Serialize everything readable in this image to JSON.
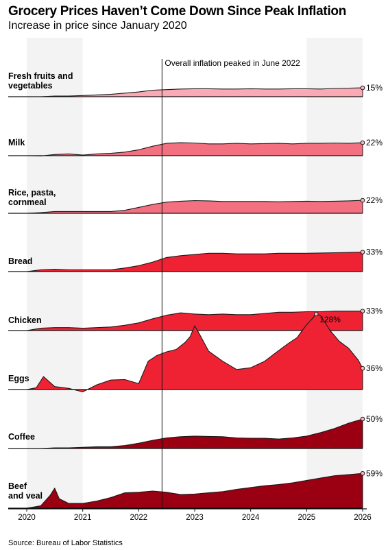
{
  "title": "Grocery Prices Haven’t Come Down Since Peak Inflation",
  "subtitle": "Increase in price since January 2020",
  "source": "Source: Bureau of Labor Statistics",
  "annotation": "Overall inflation peaked in June 2022",
  "colors": {
    "light_pink": "#f9aab5",
    "pink": "#f37081",
    "red": "#ee2233",
    "dark_red": "#9a0012",
    "shade": "#f3f3f3"
  },
  "chart_data": {
    "type": "area",
    "subtitle": "Increase in price since January 2020",
    "x_ticks": [
      "2020",
      "2021",
      "2022",
      "2023",
      "2024",
      "2025",
      "2026"
    ],
    "x_range": [
      "2020-01",
      "2026-01"
    ],
    "shaded_periods": [
      [
        "2020-01",
        "2021-01"
      ],
      [
        "2025-01",
        "2026-01"
      ]
    ],
    "reference_line": {
      "date": "2022-06",
      "label": "Overall inflation peaked in June 2022"
    },
    "unit": "% increase since January 2020",
    "series": [
      {
        "name": "Fresh fruits and vegetables",
        "label_lines": [
          "Fresh fruits and",
          "vegetables"
        ],
        "color_key": "light_pink",
        "end_label": "15%",
        "points": [
          [
            2020.0,
            0
          ],
          [
            2020.25,
            0
          ],
          [
            2020.5,
            1
          ],
          [
            2020.75,
            1
          ],
          [
            2021.0,
            2
          ],
          [
            2021.25,
            3
          ],
          [
            2021.5,
            4
          ],
          [
            2021.75,
            6
          ],
          [
            2022.0,
            8
          ],
          [
            2022.25,
            11
          ],
          [
            2022.5,
            12
          ],
          [
            2022.75,
            13
          ],
          [
            2023.0,
            13.5
          ],
          [
            2023.25,
            13.5
          ],
          [
            2023.5,
            13
          ],
          [
            2023.75,
            13
          ],
          [
            2024.0,
            13.5
          ],
          [
            2024.25,
            13
          ],
          [
            2024.5,
            13
          ],
          [
            2024.75,
            13.5
          ],
          [
            2025.0,
            13.5
          ],
          [
            2025.25,
            13
          ],
          [
            2025.5,
            14
          ],
          [
            2025.75,
            14.5
          ],
          [
            2026.0,
            15
          ]
        ]
      },
      {
        "name": "Milk",
        "label_lines": [
          "Milk"
        ],
        "color_key": "pink",
        "end_label": "22%",
        "points": [
          [
            2020.0,
            0
          ],
          [
            2020.25,
            -0.5
          ],
          [
            2020.5,
            2
          ],
          [
            2020.75,
            3
          ],
          [
            2021.0,
            1
          ],
          [
            2021.25,
            3
          ],
          [
            2021.5,
            4
          ],
          [
            2021.75,
            6
          ],
          [
            2022.0,
            10
          ],
          [
            2022.25,
            16
          ],
          [
            2022.5,
            21
          ],
          [
            2022.75,
            22
          ],
          [
            2023.0,
            21.5
          ],
          [
            2023.25,
            20
          ],
          [
            2023.5,
            20
          ],
          [
            2023.75,
            21
          ],
          [
            2024.0,
            20
          ],
          [
            2024.25,
            20.5
          ],
          [
            2024.5,
            21
          ],
          [
            2024.75,
            20
          ],
          [
            2025.0,
            21
          ],
          [
            2025.25,
            21
          ],
          [
            2025.5,
            21.5
          ],
          [
            2025.75,
            21
          ],
          [
            2026.0,
            22
          ]
        ]
      },
      {
        "name": "Rice, pasta, cornmeal",
        "label_lines": [
          "Rice, pasta,",
          "cornmeal"
        ],
        "color_key": "pink",
        "end_label": "22%",
        "points": [
          [
            2020.0,
            0
          ],
          [
            2020.25,
            1
          ],
          [
            2020.5,
            3
          ],
          [
            2020.75,
            3
          ],
          [
            2021.0,
            3
          ],
          [
            2021.25,
            3
          ],
          [
            2021.5,
            3
          ],
          [
            2021.75,
            5
          ],
          [
            2022.0,
            10
          ],
          [
            2022.25,
            15
          ],
          [
            2022.5,
            19
          ],
          [
            2022.75,
            20.5
          ],
          [
            2023.0,
            21.5
          ],
          [
            2023.25,
            21
          ],
          [
            2023.5,
            20
          ],
          [
            2023.75,
            20
          ],
          [
            2024.0,
            20
          ],
          [
            2024.25,
            20
          ],
          [
            2024.5,
            19.5
          ],
          [
            2024.75,
            20
          ],
          [
            2025.0,
            20.5
          ],
          [
            2025.25,
            20
          ],
          [
            2025.5,
            20.5
          ],
          [
            2025.75,
            21
          ],
          [
            2026.0,
            22
          ]
        ]
      },
      {
        "name": "Bread",
        "label_lines": [
          "Bread"
        ],
        "color_key": "red",
        "end_label": "33%",
        "points": [
          [
            2020.0,
            0
          ],
          [
            2020.25,
            3
          ],
          [
            2020.5,
            4
          ],
          [
            2020.75,
            3
          ],
          [
            2021.0,
            3
          ],
          [
            2021.25,
            3
          ],
          [
            2021.5,
            3
          ],
          [
            2021.75,
            6
          ],
          [
            2022.0,
            10
          ],
          [
            2022.25,
            16
          ],
          [
            2022.5,
            24
          ],
          [
            2022.75,
            27
          ],
          [
            2023.0,
            29
          ],
          [
            2023.25,
            31
          ],
          [
            2023.5,
            31
          ],
          [
            2023.75,
            30
          ],
          [
            2024.0,
            30
          ],
          [
            2024.25,
            30
          ],
          [
            2024.5,
            31
          ],
          [
            2024.75,
            31
          ],
          [
            2025.0,
            31
          ],
          [
            2025.25,
            31.5
          ],
          [
            2025.5,
            32
          ],
          [
            2025.75,
            32.5
          ],
          [
            2026.0,
            33
          ]
        ]
      },
      {
        "name": "Chicken",
        "label_lines": [
          "Chicken"
        ],
        "color_key": "red",
        "end_label": "33%",
        "points": [
          [
            2020.0,
            0
          ],
          [
            2020.25,
            4
          ],
          [
            2020.5,
            5
          ],
          [
            2020.75,
            5
          ],
          [
            2021.0,
            4
          ],
          [
            2021.25,
            5
          ],
          [
            2021.5,
            6
          ],
          [
            2021.75,
            9
          ],
          [
            2022.0,
            13
          ],
          [
            2022.25,
            20
          ],
          [
            2022.5,
            26
          ],
          [
            2022.75,
            30
          ],
          [
            2023.0,
            28
          ],
          [
            2023.25,
            27
          ],
          [
            2023.5,
            28
          ],
          [
            2023.75,
            27
          ],
          [
            2024.0,
            27
          ],
          [
            2024.25,
            29
          ],
          [
            2024.5,
            31
          ],
          [
            2024.75,
            31
          ],
          [
            2025.0,
            32
          ],
          [
            2025.25,
            32
          ],
          [
            2025.5,
            33
          ],
          [
            2025.75,
            33
          ],
          [
            2026.0,
            33
          ]
        ]
      },
      {
        "name": "Eggs",
        "label_lines": [
          "Eggs"
        ],
        "color_key": "red",
        "end_label": "36%",
        "peak": {
          "date": "2025-03",
          "label": "128%"
        },
        "points": [
          [
            2020.0,
            0
          ],
          [
            2020.17,
            3
          ],
          [
            2020.3,
            22
          ],
          [
            2020.5,
            5
          ],
          [
            2020.75,
            2
          ],
          [
            2021.0,
            -4
          ],
          [
            2021.25,
            8
          ],
          [
            2021.5,
            16
          ],
          [
            2021.75,
            17
          ],
          [
            2022.0,
            10
          ],
          [
            2022.17,
            48
          ],
          [
            2022.33,
            58
          ],
          [
            2022.5,
            64
          ],
          [
            2022.67,
            68
          ],
          [
            2022.83,
            80
          ],
          [
            2022.92,
            90
          ],
          [
            2023.0,
            108
          ],
          [
            2023.08,
            95
          ],
          [
            2023.25,
            65
          ],
          [
            2023.5,
            48
          ],
          [
            2023.75,
            34
          ],
          [
            2024.0,
            37
          ],
          [
            2024.25,
            48
          ],
          [
            2024.5,
            66
          ],
          [
            2024.67,
            78
          ],
          [
            2024.83,
            88
          ],
          [
            2024.92,
            100
          ],
          [
            2025.0,
            110
          ],
          [
            2025.08,
            118
          ],
          [
            2025.17,
            128
          ],
          [
            2025.25,
            125
          ],
          [
            2025.42,
            100
          ],
          [
            2025.58,
            82
          ],
          [
            2025.75,
            70
          ],
          [
            2025.92,
            50
          ],
          [
            2026.0,
            36
          ]
        ]
      },
      {
        "name": "Coffee",
        "label_lines": [
          "Coffee"
        ],
        "color_key": "dark_red",
        "end_label": "50%",
        "points": [
          [
            2020.0,
            0
          ],
          [
            2020.25,
            0
          ],
          [
            2020.5,
            1
          ],
          [
            2020.75,
            1
          ],
          [
            2021.0,
            2
          ],
          [
            2021.25,
            3
          ],
          [
            2021.5,
            3
          ],
          [
            2021.75,
            5
          ],
          [
            2022.0,
            9
          ],
          [
            2022.25,
            14
          ],
          [
            2022.5,
            18
          ],
          [
            2022.75,
            20
          ],
          [
            2023.0,
            21
          ],
          [
            2023.25,
            20.5
          ],
          [
            2023.5,
            20
          ],
          [
            2023.75,
            18
          ],
          [
            2024.0,
            17.5
          ],
          [
            2024.25,
            17.5
          ],
          [
            2024.5,
            16
          ],
          [
            2024.75,
            18
          ],
          [
            2025.0,
            21
          ],
          [
            2025.25,
            27
          ],
          [
            2025.5,
            34
          ],
          [
            2025.75,
            43
          ],
          [
            2026.0,
            50
          ]
        ]
      },
      {
        "name": "Beef and veal",
        "label_lines": [
          "Beef",
          "and veal"
        ],
        "color_key": "dark_red",
        "end_label": "59%",
        "points": [
          [
            2020.0,
            0
          ],
          [
            2020.25,
            4
          ],
          [
            2020.42,
            22
          ],
          [
            2020.5,
            34
          ],
          [
            2020.58,
            16
          ],
          [
            2020.75,
            8
          ],
          [
            2021.0,
            8
          ],
          [
            2021.25,
            12
          ],
          [
            2021.5,
            18
          ],
          [
            2021.75,
            26
          ],
          [
            2022.0,
            27
          ],
          [
            2022.25,
            29
          ],
          [
            2022.5,
            27
          ],
          [
            2022.75,
            23
          ],
          [
            2023.0,
            24
          ],
          [
            2023.25,
            26
          ],
          [
            2023.5,
            28
          ],
          [
            2023.75,
            32
          ],
          [
            2024.0,
            35
          ],
          [
            2024.25,
            38
          ],
          [
            2024.5,
            40
          ],
          [
            2024.75,
            43
          ],
          [
            2025.0,
            47
          ],
          [
            2025.25,
            51
          ],
          [
            2025.5,
            55
          ],
          [
            2025.75,
            57
          ],
          [
            2026.0,
            59
          ]
        ]
      }
    ]
  }
}
